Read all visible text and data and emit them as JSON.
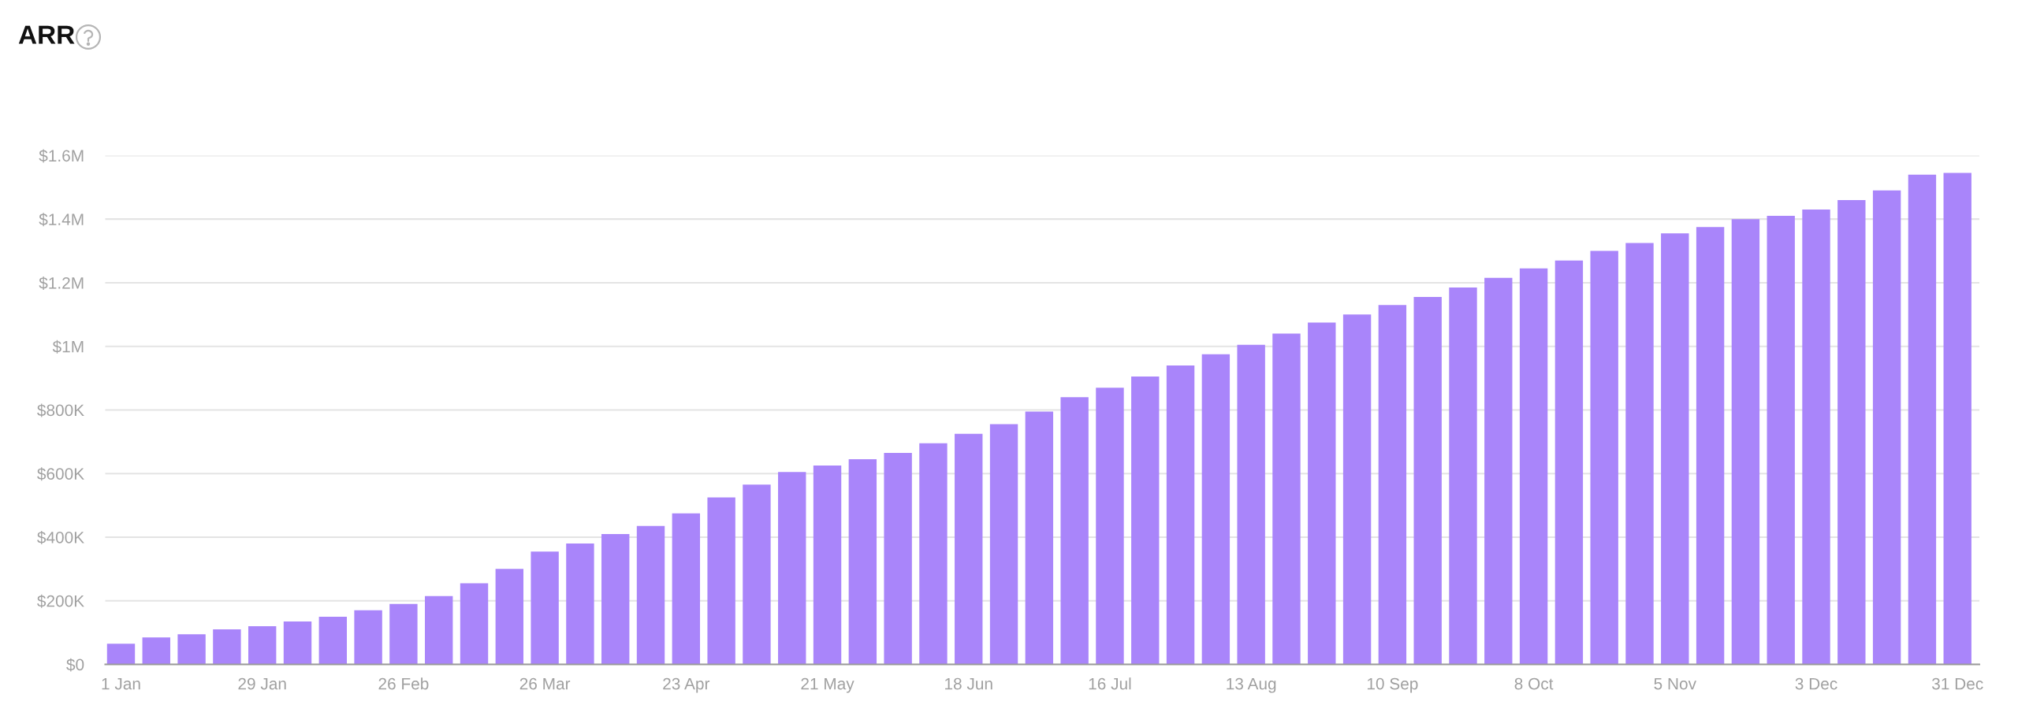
{
  "chart_data": {
    "type": "bar",
    "title": "ARR",
    "categories": [
      "1 Jan",
      null,
      null,
      null,
      "29 Jan",
      null,
      null,
      null,
      "26 Feb",
      null,
      null,
      null,
      "26 Mar",
      null,
      null,
      null,
      "23 Apr",
      null,
      null,
      null,
      "21 May",
      null,
      null,
      null,
      "18 Jun",
      null,
      null,
      null,
      "16 Jul",
      null,
      null,
      null,
      "13 Aug",
      null,
      null,
      null,
      "10 Sep",
      null,
      null,
      null,
      "8 Oct",
      null,
      null,
      null,
      "5 Nov",
      null,
      null,
      null,
      "3 Dec",
      null,
      null,
      null,
      "31 Dec"
    ],
    "values": [
      65000,
      85000,
      95000,
      110000,
      120000,
      135000,
      150000,
      170000,
      190000,
      215000,
      255000,
      300000,
      355000,
      380000,
      410000,
      435000,
      475000,
      525000,
      565000,
      605000,
      625000,
      645000,
      665000,
      695000,
      725000,
      755000,
      795000,
      840000,
      870000,
      905000,
      940000,
      975000,
      1005000,
      1040000,
      1075000,
      1100000,
      1130000,
      1155000,
      1185000,
      1215000,
      1245000,
      1270000,
      1300000,
      1325000,
      1355000,
      1375000,
      1400000,
      1410000,
      1430000,
      1460000,
      1490000,
      1540000,
      1545000
    ],
    "color": "#a985fa",
    "ylim": [
      0,
      1600000
    ],
    "yticks": [
      {
        "value": 0,
        "label": "$0"
      },
      {
        "value": 200000,
        "label": "$200K"
      },
      {
        "value": 400000,
        "label": "$400K"
      },
      {
        "value": 600000,
        "label": "$600K"
      },
      {
        "value": 800000,
        "label": "$800K"
      },
      {
        "value": 1000000,
        "label": "$1M"
      },
      {
        "value": 1200000,
        "label": "$1.2M"
      },
      {
        "value": 1400000,
        "label": "$1.4M"
      },
      {
        "value": 1600000,
        "label": "$1.6M"
      }
    ],
    "grid": "y"
  }
}
